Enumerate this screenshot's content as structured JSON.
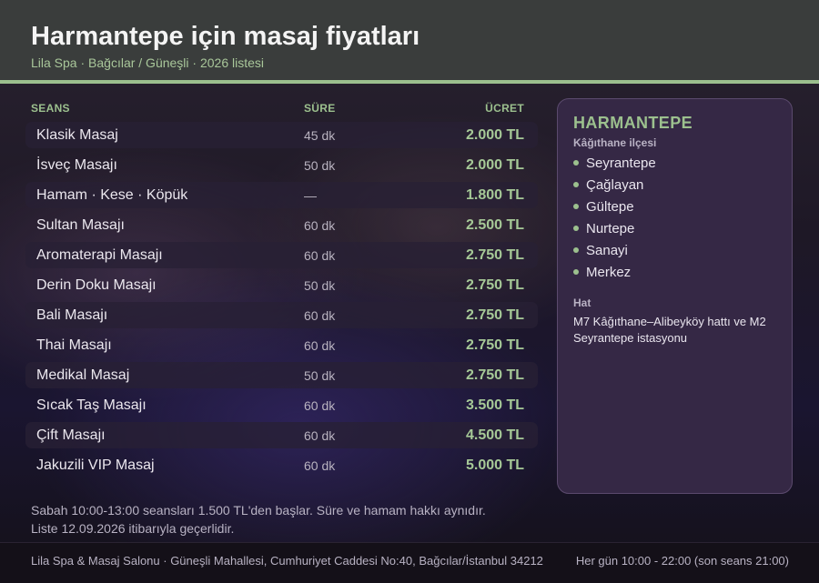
{
  "header": {
    "title": "Harmantepe için masaj fiyatları",
    "subtitle": "Lila Spa · Bağcılar / Güneşli · 2026 listesi"
  },
  "table": {
    "columns": {
      "session": "SEANS",
      "duration": "SÜRE",
      "price": "ÜCRET"
    },
    "rows": [
      {
        "name": "Klasik Masaj",
        "duration": "45 dk",
        "price": "2.000 TL"
      },
      {
        "name": "İsveç Masajı",
        "duration": "50 dk",
        "price": "2.000 TL"
      },
      {
        "name": "Hamam · Kese · Köpük",
        "duration": "—",
        "price": "1.800 TL"
      },
      {
        "name": "Sultan Masajı",
        "duration": "60 dk",
        "price": "2.500 TL"
      },
      {
        "name": "Aromaterapi Masajı",
        "duration": "60 dk",
        "price": "2.750 TL"
      },
      {
        "name": "Derin Doku Masajı",
        "duration": "50 dk",
        "price": "2.750 TL"
      },
      {
        "name": "Bali Masajı",
        "duration": "60 dk",
        "price": "2.750 TL"
      },
      {
        "name": "Thai Masajı",
        "duration": "60 dk",
        "price": "2.750 TL"
      },
      {
        "name": "Medikal Masaj",
        "duration": "50 dk",
        "price": "2.750 TL"
      },
      {
        "name": "Sıcak Taş Masajı",
        "duration": "60 dk",
        "price": "3.500 TL"
      },
      {
        "name": "Çift Masajı",
        "duration": "60 dk",
        "price": "4.500 TL"
      },
      {
        "name": "Jakuzili VIP Masaj",
        "duration": "60 dk",
        "price": "5.000 TL"
      }
    ]
  },
  "notes": {
    "line1": "Sabah 10:00-13:00 seansları 1.500 TL'den başlar. Süre ve hamam hakkı aynıdır.",
    "line2": "Liste 12.09.2026 itibarıyla geçerlidir."
  },
  "panel": {
    "title": "HARMANTEPE",
    "subtitle": "Kâğıthane ilçesi",
    "neighborhoods": [
      "Seyrantepe",
      "Çağlayan",
      "Gültepe",
      "Nurtepe",
      "Sanayi",
      "Merkez"
    ],
    "line_label": "Hat",
    "line_text": "M7 Kâğıthane–Alibeyköy hattı ve M2 Seyrantepe istasyonu"
  },
  "footer": {
    "address": "Lila Spa & Masaj Salonu · Güneşli Mahallesi, Cumhuriyet Caddesi No:40, Bağcılar/İstanbul 34212",
    "hours": "Her gün 10:00 - 22:00 (son seans 21:00)"
  },
  "colors": {
    "accent": "#9cc08e",
    "header_bg": "#3a3d3c",
    "panel_bg": "#352845",
    "price": "#a6c997"
  }
}
